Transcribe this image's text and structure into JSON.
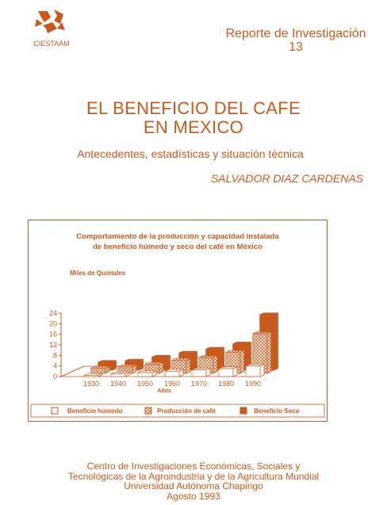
{
  "header": {
    "logo_text": "CIESTAAM",
    "report_series": "Reporte de Investigación",
    "report_number": "13"
  },
  "title_lines": [
    "EL BENEFICIO DEL CAFE",
    "EN MEXICO"
  ],
  "subtitle": "Antecedentes, estadísticas y situación técnica",
  "author": "SALVADOR DIAZ CARDENAS",
  "chart_data": {
    "type": "bar",
    "title": "Comportamiento de la producción y capacidad instalada de beneficio húmedo y seco del café en México",
    "title_lines": [
      "Comportamiento de la producción y capacidad instalada",
      "de beneficio húmedo y seco del café en México"
    ],
    "ylabel": "Miles de Quintales",
    "xlabel": "Años",
    "ylim": [
      0,
      24
    ],
    "yticks": [
      0,
      4,
      8,
      12,
      16,
      20,
      24
    ],
    "categories": [
      "1930",
      "1940",
      "1950",
      "1960",
      "1970",
      "1980",
      "1990"
    ],
    "series": [
      {
        "name": "Beneficio húmedo",
        "values": [
          0.5,
          1,
          1.5,
          2,
          2.5,
          3,
          4
        ]
      },
      {
        "name": "Producción de café",
        "values": [
          2,
          2.5,
          3.5,
          5,
          6,
          8,
          15
        ]
      },
      {
        "name": "Beneficio Seco",
        "values": [
          3,
          3.5,
          5,
          6.5,
          8,
          10,
          21
        ]
      }
    ],
    "series_colors": [
      "#ffffff",
      "#e8c4b0",
      "#c85a1e"
    ],
    "legend_position": "bottom",
    "grid": false
  },
  "footer_lines": [
    "Centro de Investigaciones Económicas, Sociales y",
    "Tecnológicas de la Agroindustria y de la Agricultura Mundial",
    "Universidad Autónoma Chapingo",
    "Agosto 1993"
  ],
  "colors": {
    "accent": "#c85a1e"
  }
}
